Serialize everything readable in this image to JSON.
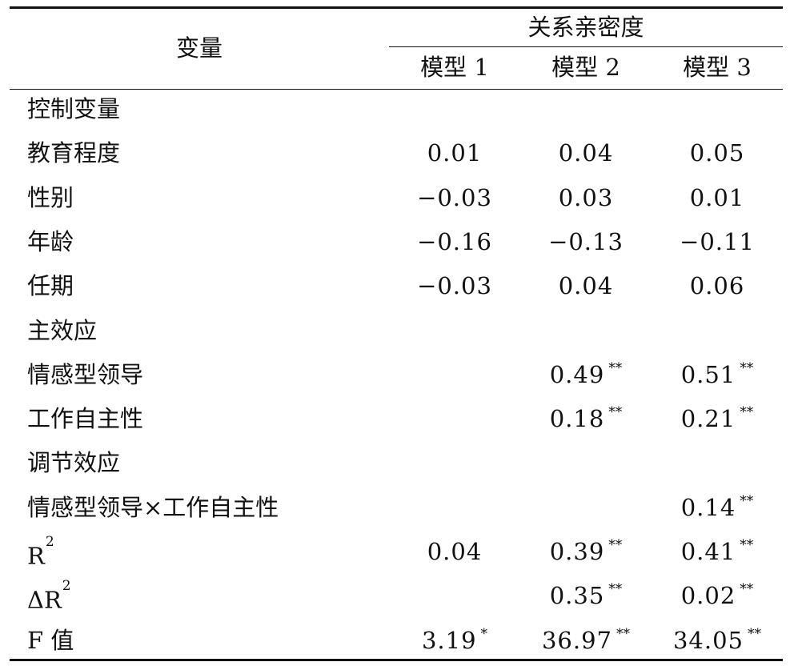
{
  "header": {
    "variable_label": "变量",
    "group_label": "关系亲密度",
    "models": [
      "模型 1",
      "模型 2",
      "模型 3"
    ]
  },
  "rows": [
    {
      "label": "控制变量",
      "values": [
        "",
        "",
        ""
      ],
      "sig": [
        "",
        "",
        ""
      ]
    },
    {
      "label": "教育程度",
      "values": [
        "0.01",
        "0.04",
        "0.05"
      ],
      "sig": [
        "",
        "",
        ""
      ]
    },
    {
      "label": "性别",
      "values": [
        "−0.03",
        "0.03",
        "0.01"
      ],
      "sig": [
        "",
        "",
        ""
      ]
    },
    {
      "label": "年龄",
      "values": [
        "−0.16",
        "−0.13",
        "−0.11"
      ],
      "sig": [
        "",
        "",
        ""
      ]
    },
    {
      "label": "任期",
      "values": [
        "−0.03",
        "0.04",
        "0.06"
      ],
      "sig": [
        "",
        "",
        ""
      ]
    },
    {
      "label": "主效应",
      "values": [
        "",
        "",
        ""
      ],
      "sig": [
        "",
        "",
        ""
      ]
    },
    {
      "label": "情感型领导",
      "values": [
        "",
        "0.49",
        "0.51"
      ],
      "sig": [
        "",
        "**",
        "**"
      ]
    },
    {
      "label": "工作自主性",
      "values": [
        "",
        "0.18",
        "0.21"
      ],
      "sig": [
        "",
        "**",
        "**"
      ]
    },
    {
      "label": "调节效应",
      "values": [
        "",
        "",
        ""
      ],
      "sig": [
        "",
        "",
        ""
      ]
    },
    {
      "label": "情感型领导×工作自主性",
      "values": [
        "",
        "",
        "0.14"
      ],
      "sig": [
        "",
        "",
        "**"
      ]
    },
    {
      "label": "R",
      "label_sup": "2",
      "values": [
        "0.04",
        "0.39",
        "0.41"
      ],
      "sig": [
        "",
        "**",
        "**"
      ]
    },
    {
      "label": "ΔR",
      "label_sup": "2",
      "values": [
        "",
        "0.35",
        "0.02"
      ],
      "sig": [
        "",
        "**",
        "**"
      ]
    },
    {
      "label": "F 值",
      "values": [
        "3.19",
        "36.97",
        "34.05"
      ],
      "sig": [
        "*",
        "**",
        "**"
      ]
    }
  ]
}
